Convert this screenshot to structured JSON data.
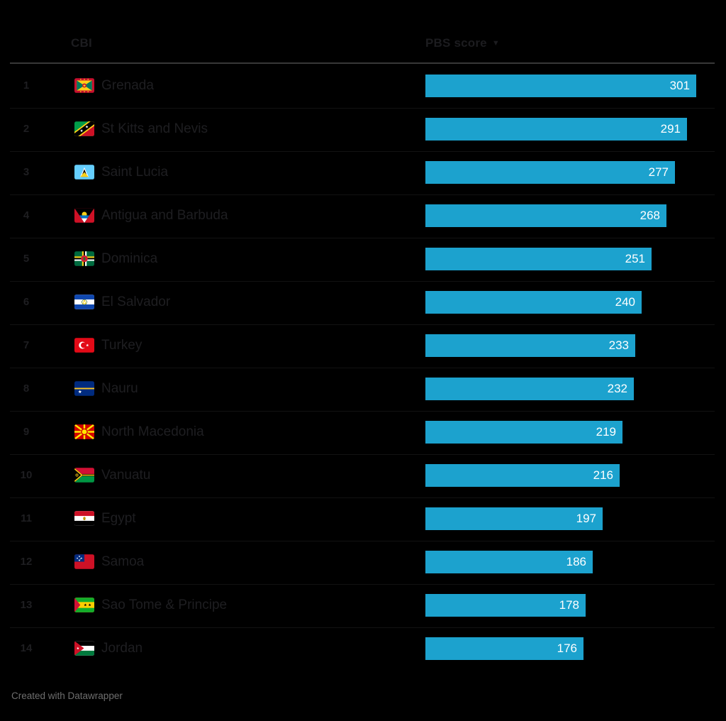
{
  "header": {
    "col1": "CBI",
    "col2": "PBS score",
    "sort_indicator": "▼"
  },
  "footer": {
    "credit": "Created with Datawrapper"
  },
  "chart_data": {
    "type": "bar",
    "orientation": "horizontal",
    "value_column": "PBS score",
    "category_column": "CBI",
    "sort": "descending",
    "axis_min": 0,
    "max_value": 301,
    "bar_color": "#1CA2CE",
    "value_label_color": "#FFFFFF",
    "background_color": "#000000",
    "categories": [
      "Grenada",
      "St Kitts and Nevis",
      "Saint Lucia",
      "Antigua and Barbuda",
      "Dominica",
      "El Salvador",
      "Turkey",
      "Nauru",
      "North Macedonia",
      "Vanuatu",
      "Egypt",
      "Samoa",
      "Sao Tome & Principe",
      "Jordan"
    ],
    "values": [
      301,
      291,
      277,
      268,
      251,
      240,
      233,
      232,
      219,
      216,
      197,
      186,
      178,
      176
    ],
    "rows": [
      {
        "rank": "1",
        "country": "Grenada",
        "flag": "grenada-flag",
        "value": "301"
      },
      {
        "rank": "2",
        "country": "St Kitts and Nevis",
        "flag": "st-kitts-and-nevis-flag",
        "value": "291"
      },
      {
        "rank": "3",
        "country": "Saint Lucia",
        "flag": "saint-lucia-flag",
        "value": "277"
      },
      {
        "rank": "4",
        "country": "Antigua and Barbuda",
        "flag": "antigua-and-barbuda-flag",
        "value": "268"
      },
      {
        "rank": "5",
        "country": "Dominica",
        "flag": "dominica-flag",
        "value": "251"
      },
      {
        "rank": "6",
        "country": "El Salvador",
        "flag": "el-salvador-flag",
        "value": "240"
      },
      {
        "rank": "7",
        "country": "Turkey",
        "flag": "turkey-flag",
        "value": "233"
      },
      {
        "rank": "8",
        "country": "Nauru",
        "flag": "nauru-flag",
        "value": "232"
      },
      {
        "rank": "9",
        "country": "North Macedonia",
        "flag": "north-macedonia-flag",
        "value": "219"
      },
      {
        "rank": "10",
        "country": "Vanuatu",
        "flag": "vanuatu-flag",
        "value": "216"
      },
      {
        "rank": "11",
        "country": "Egypt",
        "flag": "egypt-flag",
        "value": "197"
      },
      {
        "rank": "12",
        "country": "Samoa",
        "flag": "samoa-flag",
        "value": "186"
      },
      {
        "rank": "13",
        "country": "Sao Tome & Principe",
        "flag": "sao-tome-and-principe-flag",
        "value": "178"
      },
      {
        "rank": "14",
        "country": "Jordan",
        "flag": "jordan-flag",
        "value": "176"
      }
    ]
  }
}
